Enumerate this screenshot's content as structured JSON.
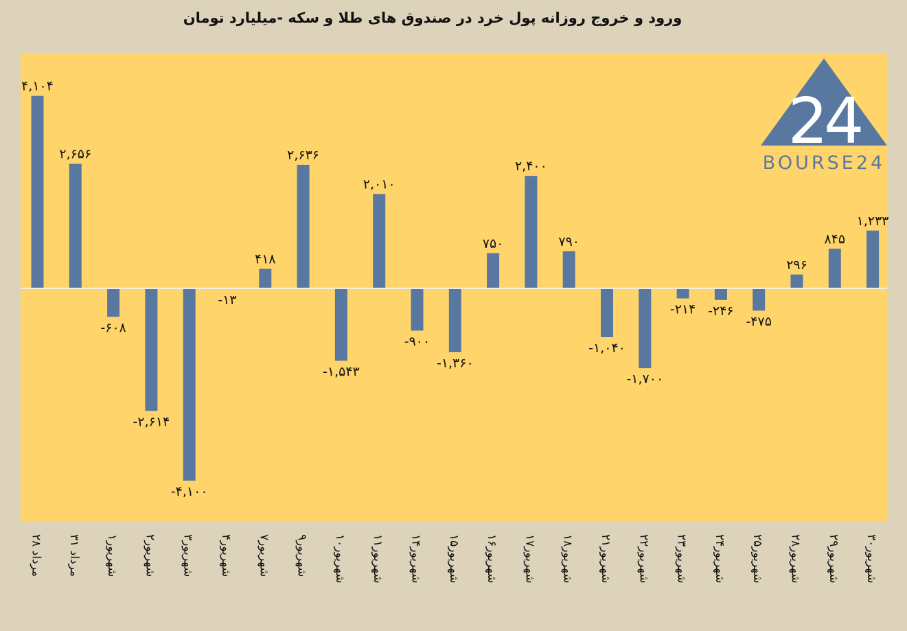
{
  "chart_data": {
    "type": "bar",
    "title": "ورود و خروج روزانه پول خرد در صندوق های طلا و سکه -میلیارد تومان",
    "categories": [
      "۲۸ مرداد",
      "۳۱ مرداد",
      "۱شهریور",
      "۲شهریور",
      "۳شهریور",
      "۴شهریور",
      "۷شهریور",
      "۹شهریور",
      "۱۰شهریور",
      "۱۱شهریور",
      "۱۴شهریور",
      "۱۵شهریور",
      "۱۶شهریور",
      "۱۷شهریور",
      "۱۸شهریور",
      "۲۱شهریور",
      "۲۲شهریور",
      "۲۳شهریور",
      "۲۴شهریور",
      "۲۵شهریور",
      "۲۸شهریور",
      "۲۹شهریور",
      "۳۰شهریور"
    ],
    "values": [
      4104,
      2656,
      -608,
      -2614,
      -4100,
      -13,
      418,
      2636,
      -1543,
      2010,
      -900,
      -1360,
      750,
      2400,
      790,
      -1040,
      -1700,
      -214,
      -246,
      -475,
      296,
      845,
      1233
    ],
    "data_labels": [
      "۴,۱۰۴",
      "۲,۶۵۶",
      "-۶۰۸",
      "-۲,۶۱۴",
      "-۴,۱۰۰",
      "-۱۳",
      "۴۱۸",
      "۲,۶۳۶",
      "-۱,۵۴۳",
      "۲,۰۱۰",
      "-۹۰۰",
      "-۱,۳۶۰",
      "۷۵۰",
      "۲,۴۰۰",
      "۷۹۰",
      "-۱,۰۴۰",
      "-۱,۷۰۰",
      "-۲۱۴",
      "-۲۴۶",
      "-۴۷۵",
      "۲۹۶",
      "۸۴۵",
      "۱,۲۳۳"
    ],
    "ylim": [
      -5000,
      5000
    ],
    "grid": false,
    "bar_color": "#5878a0",
    "plot_background": "#fed46b",
    "page_background": "#ddd3bb"
  },
  "logo": {
    "text": "BOURSE24",
    "numeral": "24",
    "color": "#5878a0"
  }
}
